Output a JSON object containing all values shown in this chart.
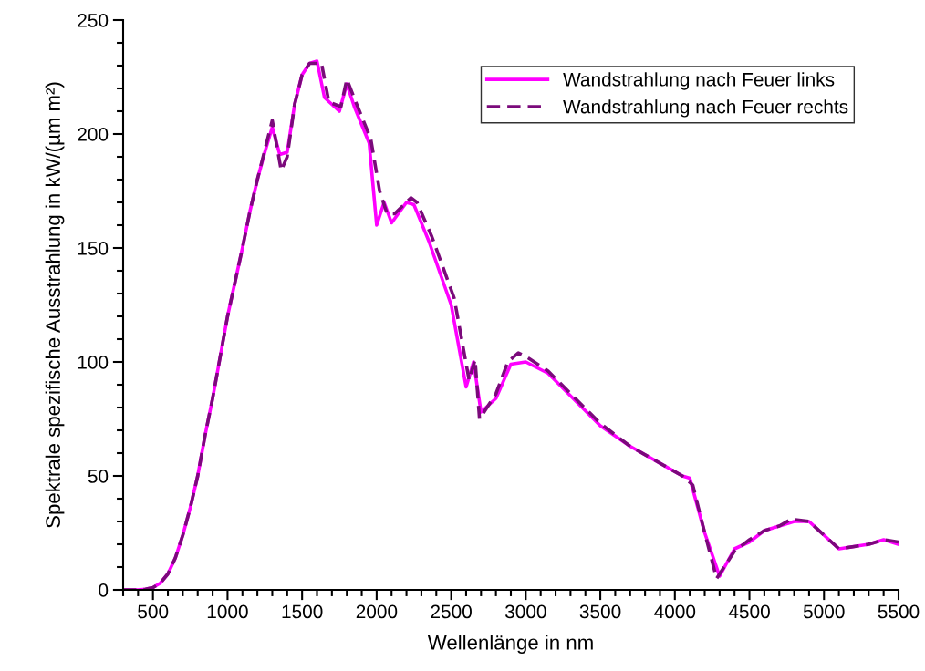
{
  "chart_data": {
    "type": "line",
    "xlabel": "Wellenlänge in nm",
    "ylabel": "Spektrale spezifische Ausstrahlung in kW/(µm m²)",
    "xlim": [
      300,
      5500
    ],
    "xticks": [
      500,
      1000,
      1500,
      2000,
      2500,
      3000,
      3500,
      4000,
      4500,
      5000,
      5500
    ],
    "ylim": [
      0,
      250
    ],
    "yticks": [
      0,
      50,
      100,
      150,
      200,
      250
    ],
    "grid": false,
    "legend": "top right",
    "series": [
      {
        "name": "Wandstrahlung nach Feuer links",
        "color": "#ff00ff",
        "line_style": "solid",
        "x": [
          300,
          400,
          450,
          500,
          550,
          600,
          650,
          700,
          750,
          800,
          850,
          900,
          950,
          1000,
          1050,
          1100,
          1150,
          1200,
          1250,
          1300,
          1350,
          1400,
          1450,
          1500,
          1550,
          1600,
          1650,
          1750,
          1800,
          1850,
          1950,
          2000,
          2050,
          2100,
          2200,
          2250,
          2350,
          2500,
          2600,
          2650,
          2700,
          2800,
          2900,
          3000,
          3150,
          3500,
          3700,
          4050,
          4100,
          4200,
          4300,
          4400,
          4500,
          4600,
          4700,
          4800,
          4900,
          5100,
          5300,
          5400,
          5500
        ],
        "values": [
          0,
          0,
          0.3,
          1,
          3,
          7,
          14,
          24,
          36,
          50,
          68,
          84,
          102,
          120,
          135,
          150,
          166,
          180,
          192,
          203,
          191,
          192,
          213,
          226,
          231,
          232,
          216,
          210,
          222,
          212,
          196,
          160,
          170,
          161,
          170,
          169,
          153,
          125,
          89,
          100,
          78,
          84,
          99,
          100,
          95,
          72,
          63,
          50,
          49,
          25,
          6,
          18,
          21,
          26,
          28,
          30,
          30,
          18,
          20,
          22,
          20
        ]
      },
      {
        "name": "Wandstrahlung nach Feuer rechts",
        "color": "#7b0a7b",
        "line_style": "dashed",
        "x": [
          300,
          400,
          450,
          500,
          550,
          600,
          650,
          700,
          750,
          800,
          850,
          900,
          950,
          1000,
          1050,
          1100,
          1150,
          1200,
          1250,
          1300,
          1360,
          1400,
          1450,
          1500,
          1550,
          1600,
          1630,
          1680,
          1760,
          1800,
          1860,
          1960,
          2020,
          2070,
          2120,
          2230,
          2270,
          2370,
          2520,
          2620,
          2660,
          2690,
          2800,
          2880,
          2950,
          3010,
          3150,
          3500,
          3700,
          4050,
          4120,
          4200,
          4280,
          4400,
          4500,
          4600,
          4700,
          4780,
          4900,
          5100,
          5300,
          5400,
          5500
        ],
        "values": [
          0,
          0,
          0.3,
          1,
          3,
          7,
          14,
          24,
          36,
          50,
          68,
          84,
          102,
          120,
          135,
          150,
          166,
          180,
          193,
          206,
          184,
          190,
          213,
          226,
          231,
          231,
          231,
          214,
          212,
          224,
          214,
          198,
          175,
          165,
          165,
          172,
          170,
          155,
          128,
          92,
          101,
          75,
          86,
          100,
          104,
          102,
          96,
          73,
          63,
          50,
          46,
          25,
          5,
          17,
          22,
          26,
          28,
          31,
          30,
          18,
          20,
          22,
          21
        ]
      }
    ]
  }
}
